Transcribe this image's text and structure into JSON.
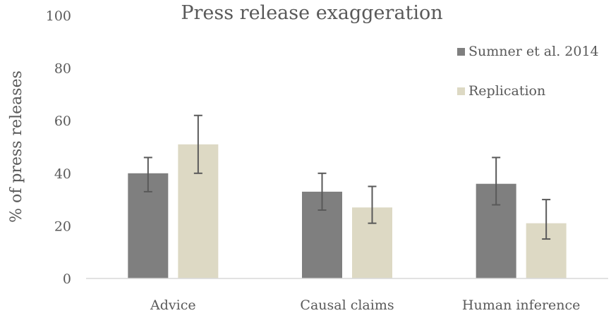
{
  "chart_data": {
    "type": "bar",
    "title": "Press release exaggeration",
    "xlabel": "",
    "ylabel": "% of press releases",
    "ylim": [
      0,
      100
    ],
    "yticks": [
      0,
      20,
      40,
      60,
      80,
      100
    ],
    "categories": [
      "Advice",
      "Causal claims",
      "Human inference"
    ],
    "series": [
      {
        "name": "Sumner et al. 2014",
        "color": "#7f7f7f",
        "values": [
          40,
          33,
          36
        ],
        "error_low": [
          33,
          26,
          28
        ],
        "error_high": [
          46,
          40,
          46
        ]
      },
      {
        "name": "Replication",
        "color": "#ddd9c4",
        "values": [
          51,
          27,
          21
        ],
        "error_low": [
          40,
          21,
          15
        ],
        "error_high": [
          62,
          35,
          30
        ]
      }
    ],
    "grid": false,
    "legend_position": "top-right",
    "error_bar_color": "#595959",
    "axis_color": "#d9d9d9"
  }
}
